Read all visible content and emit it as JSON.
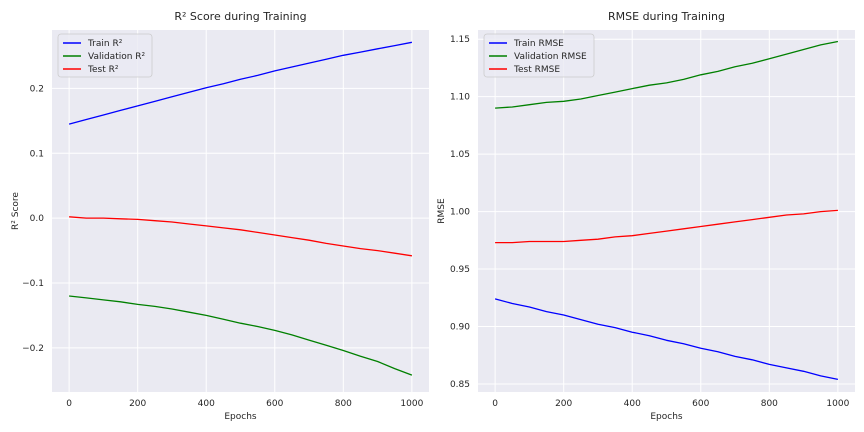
{
  "chart_data": [
    {
      "type": "line",
      "title": "R² Score during Training",
      "xlabel": "Epochs",
      "ylabel": "R² Score",
      "xlim": [
        -50,
        1050
      ],
      "ylim": [
        -0.268,
        0.29
      ],
      "xticks": [
        0,
        200,
        400,
        600,
        800,
        1000
      ],
      "yticks": [
        -0.2,
        -0.1,
        0.0,
        0.1,
        0.2
      ],
      "ytick_labels": [
        "−0.2",
        "−0.1",
        "0.0",
        "0.1",
        "0.2"
      ],
      "grid": true,
      "legend_position": "upper-left",
      "x": [
        0,
        50,
        100,
        150,
        200,
        250,
        300,
        350,
        400,
        450,
        500,
        550,
        600,
        650,
        700,
        750,
        800,
        850,
        900,
        950,
        1000
      ],
      "series": [
        {
          "name": "Train R²",
          "color": "#0000ff",
          "values": [
            0.145,
            0.152,
            0.159,
            0.166,
            0.173,
            0.18,
            0.187,
            0.194,
            0.201,
            0.207,
            0.214,
            0.22,
            0.227,
            0.233,
            0.239,
            0.245,
            0.251,
            0.256,
            0.261,
            0.266,
            0.271
          ]
        },
        {
          "name": "Validation R²",
          "color": "#008000",
          "values": [
            -0.12,
            -0.123,
            -0.126,
            -0.129,
            -0.133,
            -0.136,
            -0.14,
            -0.145,
            -0.15,
            -0.156,
            -0.162,
            -0.167,
            -0.173,
            -0.18,
            -0.188,
            -0.196,
            -0.204,
            -0.213,
            -0.221,
            -0.232,
            -0.242
          ]
        },
        {
          "name": "Test R²",
          "color": "#ff0000",
          "values": [
            0.002,
            0.0,
            0.0,
            -0.001,
            -0.002,
            -0.004,
            -0.006,
            -0.009,
            -0.012,
            -0.015,
            -0.018,
            -0.022,
            -0.026,
            -0.03,
            -0.034,
            -0.039,
            -0.043,
            -0.047,
            -0.05,
            -0.054,
            -0.058
          ]
        }
      ]
    },
    {
      "type": "line",
      "title": "RMSE during Training",
      "xlabel": "Epochs",
      "ylabel": "RMSE",
      "xlim": [
        -50,
        1050
      ],
      "ylim": [
        0.843,
        1.158
      ],
      "xticks": [
        0,
        200,
        400,
        600,
        800,
        1000
      ],
      "yticks": [
        0.85,
        0.9,
        0.95,
        1.0,
        1.05,
        1.1,
        1.15
      ],
      "ytick_labels": [
        "0.85",
        "0.90",
        "0.95",
        "1.00",
        "1.05",
        "1.10",
        "1.15"
      ],
      "grid": true,
      "legend_position": "upper-left",
      "x": [
        0,
        50,
        100,
        150,
        200,
        250,
        300,
        350,
        400,
        450,
        500,
        550,
        600,
        650,
        700,
        750,
        800,
        850,
        900,
        950,
        1000
      ],
      "series": [
        {
          "name": "Train RMSE",
          "color": "#0000ff",
          "values": [
            0.924,
            0.92,
            0.917,
            0.913,
            0.91,
            0.906,
            0.902,
            0.899,
            0.895,
            0.892,
            0.888,
            0.885,
            0.881,
            0.878,
            0.874,
            0.871,
            0.867,
            0.864,
            0.861,
            0.857,
            0.854
          ]
        },
        {
          "name": "Validation RMSE",
          "color": "#008000",
          "values": [
            1.09,
            1.091,
            1.093,
            1.095,
            1.096,
            1.098,
            1.101,
            1.104,
            1.107,
            1.11,
            1.112,
            1.115,
            1.119,
            1.122,
            1.126,
            1.129,
            1.133,
            1.137,
            1.141,
            1.145,
            1.148
          ]
        },
        {
          "name": "Test RMSE",
          "color": "#ff0000",
          "values": [
            0.973,
            0.973,
            0.974,
            0.974,
            0.974,
            0.975,
            0.976,
            0.978,
            0.979,
            0.981,
            0.983,
            0.985,
            0.987,
            0.989,
            0.991,
            0.993,
            0.995,
            0.997,
            0.998,
            1.0,
            1.001
          ]
        }
      ]
    }
  ]
}
